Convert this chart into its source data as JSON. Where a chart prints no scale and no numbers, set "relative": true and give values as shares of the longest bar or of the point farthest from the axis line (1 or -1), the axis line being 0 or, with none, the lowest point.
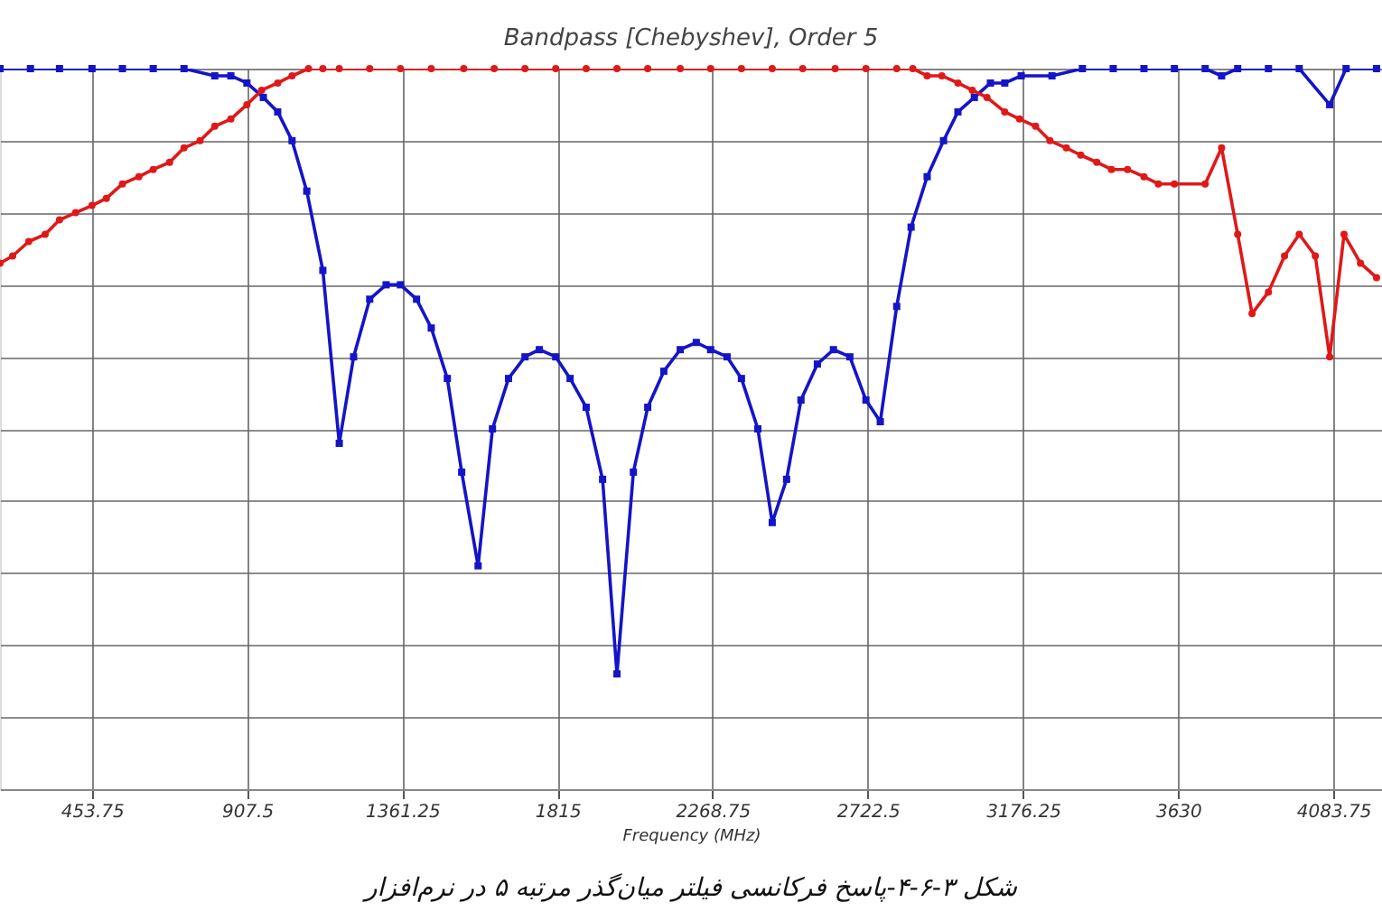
{
  "chart_data": {
    "type": "line",
    "title": "Bandpass [Chebyshev], Order 5",
    "xlabel": "Frequency (MHz)",
    "relative": true,
    "grid": true,
    "line_style": "solid",
    "xlim": [
      185,
      4226
    ],
    "xticks": [
      453.75,
      907.5,
      1361.25,
      1815,
      2268.75,
      2722.5,
      3176.25,
      3630,
      4083.75
    ],
    "annotations": [
      "شکل ۳-۶-۴-پاسخ فرکانسی فیلتر میان‌گذر مرتبه ۵ در نرم‌افزار"
    ],
    "series": [
      {
        "color": "#1414c8",
        "marker": "square",
        "x": [
          185,
          274,
          359,
          454,
          543,
          633,
          723,
          813,
          860,
          907,
          955,
          997,
          1039,
          1082,
          1129,
          1177,
          1219,
          1266,
          1314,
          1356,
          1403,
          1446,
          1493,
          1535,
          1583,
          1625,
          1672,
          1720,
          1762,
          1810,
          1852,
          1899,
          1947,
          1989,
          2037,
          2079,
          2126,
          2174,
          2221,
          2263,
          2311,
          2353,
          2401,
          2443,
          2485,
          2527,
          2575,
          2622,
          2670,
          2717,
          2759,
          2807,
          2849,
          2896,
          2944,
          2986,
          3034,
          3081,
          3123,
          3171,
          3261,
          3350,
          3440,
          3530,
          3619,
          3709,
          3757,
          3804,
          3894,
          3984,
          4073,
          4121,
          4210
        ],
        "values": [
          1.0,
          1.0,
          1.0,
          1.0,
          1.0,
          1.0,
          1.0,
          0.99,
          0.99,
          0.98,
          0.96,
          0.94,
          0.9,
          0.83,
          0.72,
          0.48,
          0.6,
          0.68,
          0.7,
          0.7,
          0.68,
          0.64,
          0.57,
          0.44,
          0.31,
          0.5,
          0.57,
          0.6,
          0.61,
          0.6,
          0.57,
          0.53,
          0.43,
          0.16,
          0.44,
          0.53,
          0.58,
          0.61,
          0.62,
          0.61,
          0.6,
          0.57,
          0.5,
          0.37,
          0.43,
          0.54,
          0.59,
          0.61,
          0.6,
          0.54,
          0.51,
          0.67,
          0.78,
          0.85,
          0.9,
          0.94,
          0.96,
          0.98,
          0.98,
          0.99,
          0.99,
          1.0,
          1.0,
          1.0,
          1.0,
          1.0,
          0.99,
          1.0,
          1.0,
          1.0,
          0.95,
          1.0,
          1.0
        ]
      },
      {
        "color": "#e01818",
        "marker": "circle",
        "x": [
          185,
          222,
          269,
          317,
          359,
          406,
          454,
          496,
          543,
          591,
          633,
          681,
          723,
          770,
          813,
          860,
          907,
          950,
          997,
          1039,
          1087,
          1129,
          1177,
          1266,
          1356,
          1446,
          1541,
          1630,
          1720,
          1810,
          1899,
          1989,
          2079,
          2174,
          2263,
          2353,
          2443,
          2532,
          2627,
          2717,
          2807,
          2854,
          2896,
          2939,
          2986,
          3028,
          3071,
          3123,
          3166,
          3213,
          3255,
          3303,
          3345,
          3392,
          3435,
          3482,
          3530,
          3572,
          3619,
          3709,
          3757,
          3804,
          3846,
          3894,
          3941,
          3984,
          4031,
          4073,
          4115,
          4163,
          4210
        ],
        "values": [
          0.73,
          0.74,
          0.76,
          0.77,
          0.79,
          0.8,
          0.81,
          0.82,
          0.84,
          0.85,
          0.86,
          0.87,
          0.89,
          0.9,
          0.92,
          0.93,
          0.95,
          0.97,
          0.98,
          0.99,
          1.0,
          1.0,
          1.0,
          1.0,
          1.0,
          1.0,
          1.0,
          1.0,
          1.0,
          1.0,
          1.0,
          1.0,
          1.0,
          1.0,
          1.0,
          1.0,
          1.0,
          1.0,
          1.0,
          1.0,
          1.0,
          1.0,
          0.99,
          0.99,
          0.98,
          0.97,
          0.96,
          0.94,
          0.93,
          0.92,
          0.9,
          0.89,
          0.88,
          0.87,
          0.86,
          0.86,
          0.85,
          0.84,
          0.84,
          0.84,
          0.89,
          0.77,
          0.66,
          0.69,
          0.74,
          0.77,
          0.74,
          0.6,
          0.77,
          0.73,
          0.71
        ]
      }
    ]
  }
}
